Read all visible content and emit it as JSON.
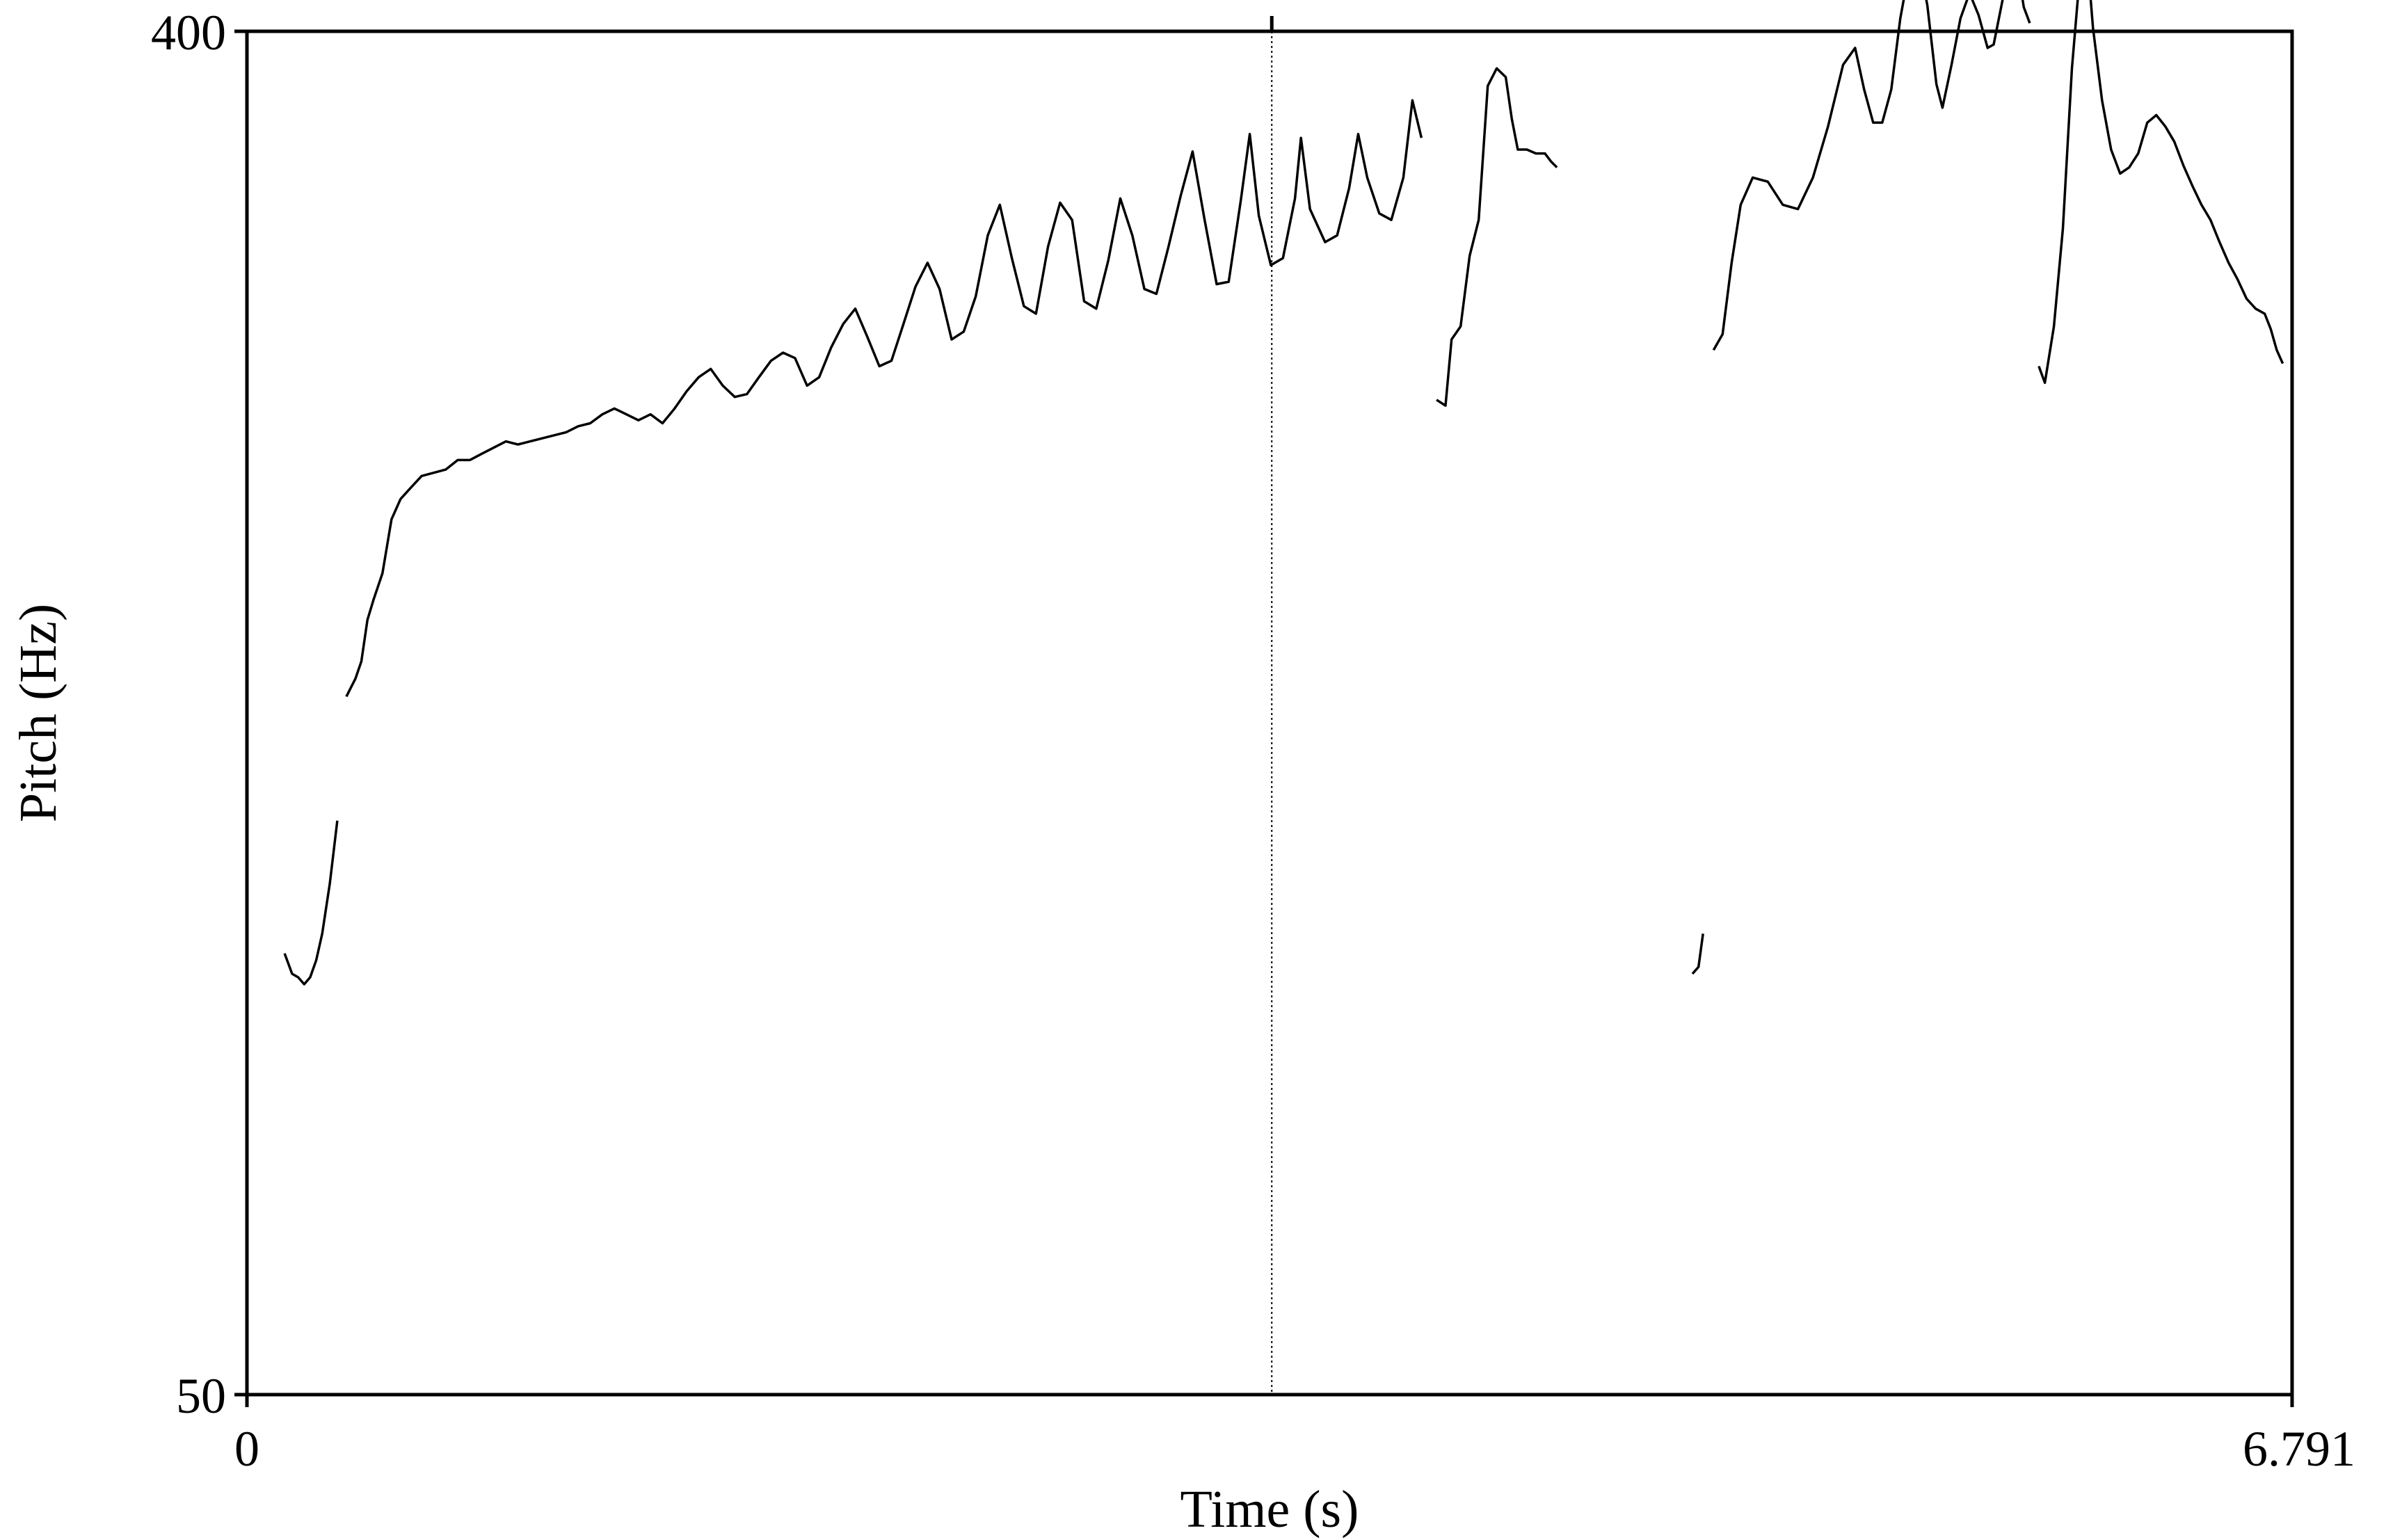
{
  "chart_data": {
    "type": "line",
    "title": "",
    "xlabel": "Time (s)",
    "ylabel": "Pitch (Hz)",
    "xlim": [
      0,
      6.791
    ],
    "ylim": [
      50,
      400
    ],
    "x_tick_labels": [
      "0",
      "6.791"
    ],
    "y_tick_labels": [
      "50",
      "400"
    ],
    "grid": false,
    "line_color": "#000000",
    "cursor_time": 3.403,
    "series": [
      {
        "segments": [
          {
            "points": [
              [
                0.125,
                98
              ],
              [
                0.15,
                95
              ],
              [
                0.17,
                94.5
              ],
              [
                0.19,
                93.5
              ],
              [
                0.21,
                94.5
              ],
              [
                0.23,
                97
              ],
              [
                0.25,
                101
              ],
              [
                0.275,
                109
              ],
              [
                0.3,
                120
              ]
            ]
          },
          {
            "points": [
              [
                0.33,
                145
              ],
              [
                0.36,
                149
              ],
              [
                0.38,
                153
              ],
              [
                0.4,
                163
              ],
              [
                0.42,
                168
              ],
              [
                0.45,
                175
              ],
              [
                0.48,
                190
              ],
              [
                0.51,
                196
              ],
              [
                0.54,
                199
              ],
              [
                0.58,
                203
              ],
              [
                0.62,
                204
              ],
              [
                0.66,
                205
              ],
              [
                0.7,
                208
              ],
              [
                0.74,
                208
              ],
              [
                0.78,
                210
              ],
              [
                0.82,
                212
              ],
              [
                0.86,
                214
              ],
              [
                0.9,
                213
              ],
              [
                0.94,
                214
              ],
              [
                0.98,
                215
              ],
              [
                1.02,
                216
              ],
              [
                1.06,
                217
              ],
              [
                1.1,
                219
              ],
              [
                1.14,
                220
              ],
              [
                1.18,
                223
              ],
              [
                1.22,
                225
              ],
              [
                1.26,
                223
              ],
              [
                1.3,
                221
              ],
              [
                1.34,
                223
              ],
              [
                1.38,
                220
              ],
              [
                1.42,
                225
              ],
              [
                1.46,
                231
              ],
              [
                1.5,
                236
              ],
              [
                1.54,
                239
              ],
              [
                1.58,
                233
              ],
              [
                1.62,
                229
              ],
              [
                1.66,
                230
              ],
              [
                1.7,
                236
              ],
              [
                1.74,
                242
              ],
              [
                1.78,
                245
              ],
              [
                1.82,
                243
              ],
              [
                1.86,
                233
              ],
              [
                1.9,
                236
              ],
              [
                1.94,
                247
              ],
              [
                1.98,
                256
              ],
              [
                2.02,
                262
              ],
              [
                2.06,
                251
              ],
              [
                2.1,
                240
              ],
              [
                2.14,
                242
              ],
              [
                2.18,
                256
              ],
              [
                2.22,
                271
              ],
              [
                2.26,
                281
              ],
              [
                2.3,
                270
              ],
              [
                2.34,
                250
              ],
              [
                2.38,
                253
              ],
              [
                2.42,
                267
              ],
              [
                2.46,
                293
              ],
              [
                2.5,
                307
              ],
              [
                2.54,
                283
              ],
              [
                2.58,
                263
              ],
              [
                2.62,
                260
              ],
              [
                2.66,
                288
              ],
              [
                2.7,
                308
              ],
              [
                2.74,
                300
              ],
              [
                2.78,
                265
              ],
              [
                2.82,
                262
              ],
              [
                2.86,
                282
              ],
              [
                2.9,
                310
              ],
              [
                2.94,
                293
              ],
              [
                2.98,
                270
              ],
              [
                3.02,
                268
              ],
              [
                3.06,
                288
              ],
              [
                3.1,
                311
              ],
              [
                3.14,
                333
              ],
              [
                3.18,
                300
              ],
              [
                3.22,
                272
              ],
              [
                3.26,
                273
              ],
              [
                3.3,
                309
              ],
              [
                3.33,
                342
              ],
              [
                3.36,
                302
              ],
              [
                3.4,
                280
              ],
              [
                3.44,
                283
              ],
              [
                3.48,
                310
              ],
              [
                3.5,
                340
              ],
              [
                3.53,
                305
              ],
              [
                3.58,
                290
              ],
              [
                3.62,
                293
              ],
              [
                3.66,
                315
              ],
              [
                3.69,
                342
              ],
              [
                3.72,
                320
              ],
              [
                3.76,
                303
              ],
              [
                3.8,
                300
              ],
              [
                3.84,
                320
              ],
              [
                3.87,
                360
              ],
              [
                3.9,
                340
              ]
            ]
          },
          {
            "points": [
              [
                3.95,
                228
              ],
              [
                3.98,
                226
              ],
              [
                4.0,
                250
              ],
              [
                4.03,
                255
              ],
              [
                4.06,
                284
              ],
              [
                4.09,
                300
              ],
              [
                4.12,
                368
              ],
              [
                4.15,
                378
              ],
              [
                4.18,
                373
              ],
              [
                4.2,
                350
              ],
              [
                4.22,
                334
              ],
              [
                4.25,
                334
              ],
              [
                4.28,
                332
              ],
              [
                4.31,
                332
              ],
              [
                4.33,
                328
              ],
              [
                4.35,
                325
              ]
            ]
          },
          {
            "points": [
              [
                4.8,
                95
              ],
              [
                4.82,
                96
              ],
              [
                4.835,
                101
              ]
            ]
          },
          {
            "points": [
              [
                4.87,
                246
              ],
              [
                4.9,
                252
              ],
              [
                4.93,
                281
              ],
              [
                4.96,
                307
              ],
              [
                5.0,
                320
              ],
              [
                5.05,
                318
              ],
              [
                5.1,
                307
              ],
              [
                5.15,
                305
              ],
              [
                5.2,
                320
              ],
              [
                5.25,
                346
              ],
              [
                5.3,
                380
              ],
              [
                5.34,
                390
              ],
              [
                5.37,
                366
              ],
              [
                5.4,
                348
              ],
              [
                5.43,
                348
              ],
              [
                5.46,
                366
              ],
              [
                5.49,
                408
              ],
              [
                5.52,
                440
              ],
              [
                5.55,
                448
              ],
              [
                5.58,
                416
              ],
              [
                5.61,
                369
              ],
              [
                5.63,
                356
              ],
              [
                5.66,
                380
              ],
              [
                5.69,
                408
              ],
              [
                5.72,
                424
              ],
              [
                5.75,
                410
              ],
              [
                5.78,
                390
              ],
              [
                5.8,
                392
              ],
              [
                5.83,
                420
              ],
              [
                5.86,
                436
              ],
              [
                5.88,
                440
              ],
              [
                5.9,
                415
              ],
              [
                5.92,
                405
              ]
            ]
          },
          {
            "points": [
              [
                5.95,
                240
              ],
              [
                5.97,
                234
              ],
              [
                6.0,
                255
              ],
              [
                6.03,
                296
              ],
              [
                6.06,
                378
              ],
              [
                6.09,
                445
              ],
              [
                6.11,
                450
              ],
              [
                6.13,
                402
              ],
              [
                6.16,
                360
              ],
              [
                6.19,
                334
              ],
              [
                6.22,
                322
              ],
              [
                6.25,
                325
              ],
              [
                6.28,
                332
              ],
              [
                6.31,
                348
              ],
              [
                6.34,
                352
              ],
              [
                6.37,
                346
              ],
              [
                6.4,
                338
              ],
              [
                6.43,
                326
              ],
              [
                6.46,
                316
              ],
              [
                6.49,
                307
              ],
              [
                6.52,
                300
              ],
              [
                6.55,
                290
              ],
              [
                6.58,
                281
              ],
              [
                6.61,
                274
              ],
              [
                6.64,
                266
              ],
              [
                6.67,
                262
              ],
              [
                6.7,
                260
              ],
              [
                6.72,
                254
              ],
              [
                6.74,
                246
              ],
              [
                6.76,
                241
              ]
            ]
          }
        ]
      }
    ]
  }
}
